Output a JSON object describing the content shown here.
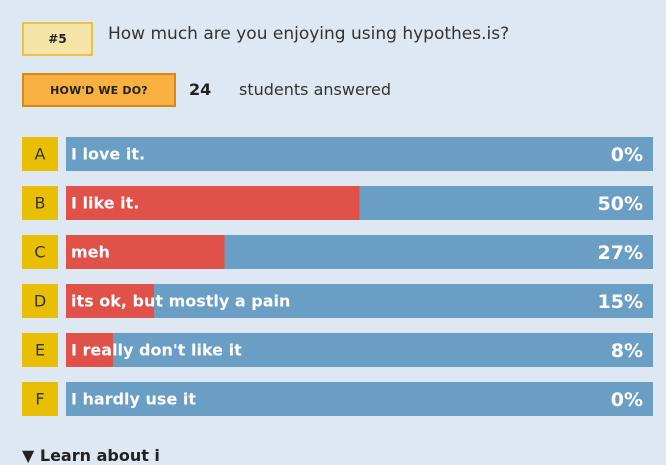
{
  "question": {
    "number": "#5",
    "text": "How much are you enjoying using hypothes.is?"
  },
  "summary": {
    "button_label": "HOW'D WE DO?",
    "count": "24",
    "count_label": "students answered"
  },
  "colors": {
    "track": "#6b9ec5",
    "fill": "#e0514a",
    "letter_box": "#e9bf06"
  },
  "chart_data": {
    "type": "bar",
    "orientation": "horizontal",
    "categories": [
      "A",
      "B",
      "C",
      "D",
      "E",
      "F"
    ],
    "labels": [
      "I love it.",
      "I like it.",
      "meh",
      "its ok, but mostly a pain",
      "I really don't like it",
      "I hardly use it"
    ],
    "values": [
      0,
      50,
      27,
      15,
      8,
      0
    ],
    "value_labels": [
      "0%",
      "50%",
      "27%",
      "15%",
      "8%",
      "0%"
    ],
    "xlim": [
      0,
      100
    ]
  },
  "footer": {
    "text": "▼ Learn about i"
  }
}
